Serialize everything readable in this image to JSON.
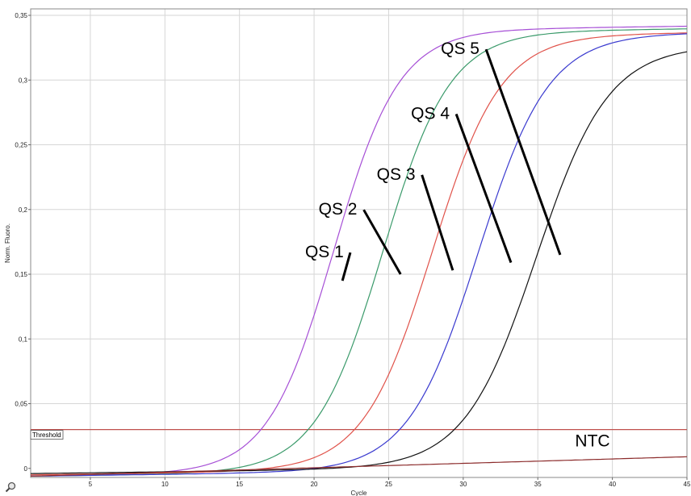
{
  "chart_data": {
    "type": "line",
    "xlabel": "Cycle",
    "ylabel": "Norm. Fluoro.",
    "xlim": [
      1,
      45
    ],
    "ylim": [
      -0.007,
      0.355
    ],
    "xticks": [
      5,
      10,
      15,
      20,
      25,
      30,
      35,
      40,
      45
    ],
    "xtick_labels": [
      "5",
      "10",
      "15",
      "20",
      "25",
      "30",
      "35",
      "40",
      "45"
    ],
    "yticks": [
      0,
      0.05,
      0.1,
      0.15,
      0.2,
      0.25,
      0.3,
      0.35
    ],
    "ytick_labels": [
      "0",
      "0,05",
      "0,1",
      "0,15",
      "0,2",
      "0,25",
      "0,3",
      "0,35"
    ],
    "grid": true,
    "threshold": {
      "label": "Threshold",
      "value": 0.03,
      "color": "#c0504d"
    },
    "series": [
      {
        "name": "QS 5",
        "color": "#a64fd6",
        "max": 0.335,
        "midpoint": 21.3,
        "slope": 2.2,
        "base": -0.006
      },
      {
        "name": "QS 4",
        "color": "#3a9a6a",
        "max": 0.333,
        "midpoint": 24.6,
        "slope": 2.25,
        "base": -0.006
      },
      {
        "name": "QS 3",
        "color": "#e0524a",
        "max": 0.33,
        "midpoint": 27.9,
        "slope": 2.3,
        "base": -0.005
      },
      {
        "name": "QS 2",
        "color": "#3a3acf",
        "max": 0.33,
        "midpoint": 31.0,
        "slope": 2.35,
        "base": -0.006
      },
      {
        "name": "QS 1",
        "color": "#111111",
        "max": 0.32,
        "midpoint": 34.9,
        "slope": 2.4,
        "base": -0.004
      },
      {
        "name": "NTC",
        "color": "#8b2a2a",
        "linear": true,
        "start": -0.006,
        "end": 0.009
      }
    ],
    "annotations": [
      {
        "text": "QS 5",
        "x": 28.5,
        "y": 0.32,
        "to_x": 36.5,
        "to_y": 0.165
      },
      {
        "text": "QS 4",
        "x": 26.5,
        "y": 0.27,
        "to_x": 33.2,
        "to_y": 0.159
      },
      {
        "text": "QS 3",
        "x": 24.2,
        "y": 0.223,
        "to_x": 29.3,
        "to_y": 0.153
      },
      {
        "text": "QS 2",
        "x": 20.3,
        "y": 0.196,
        "to_x": 25.8,
        "to_y": 0.15
      },
      {
        "text": "QS 1",
        "x": 19.4,
        "y": 0.163,
        "to_x": 21.9,
        "to_y": 0.145
      },
      {
        "text": "NTC",
        "x": 37.5,
        "y": 0.017
      }
    ]
  }
}
